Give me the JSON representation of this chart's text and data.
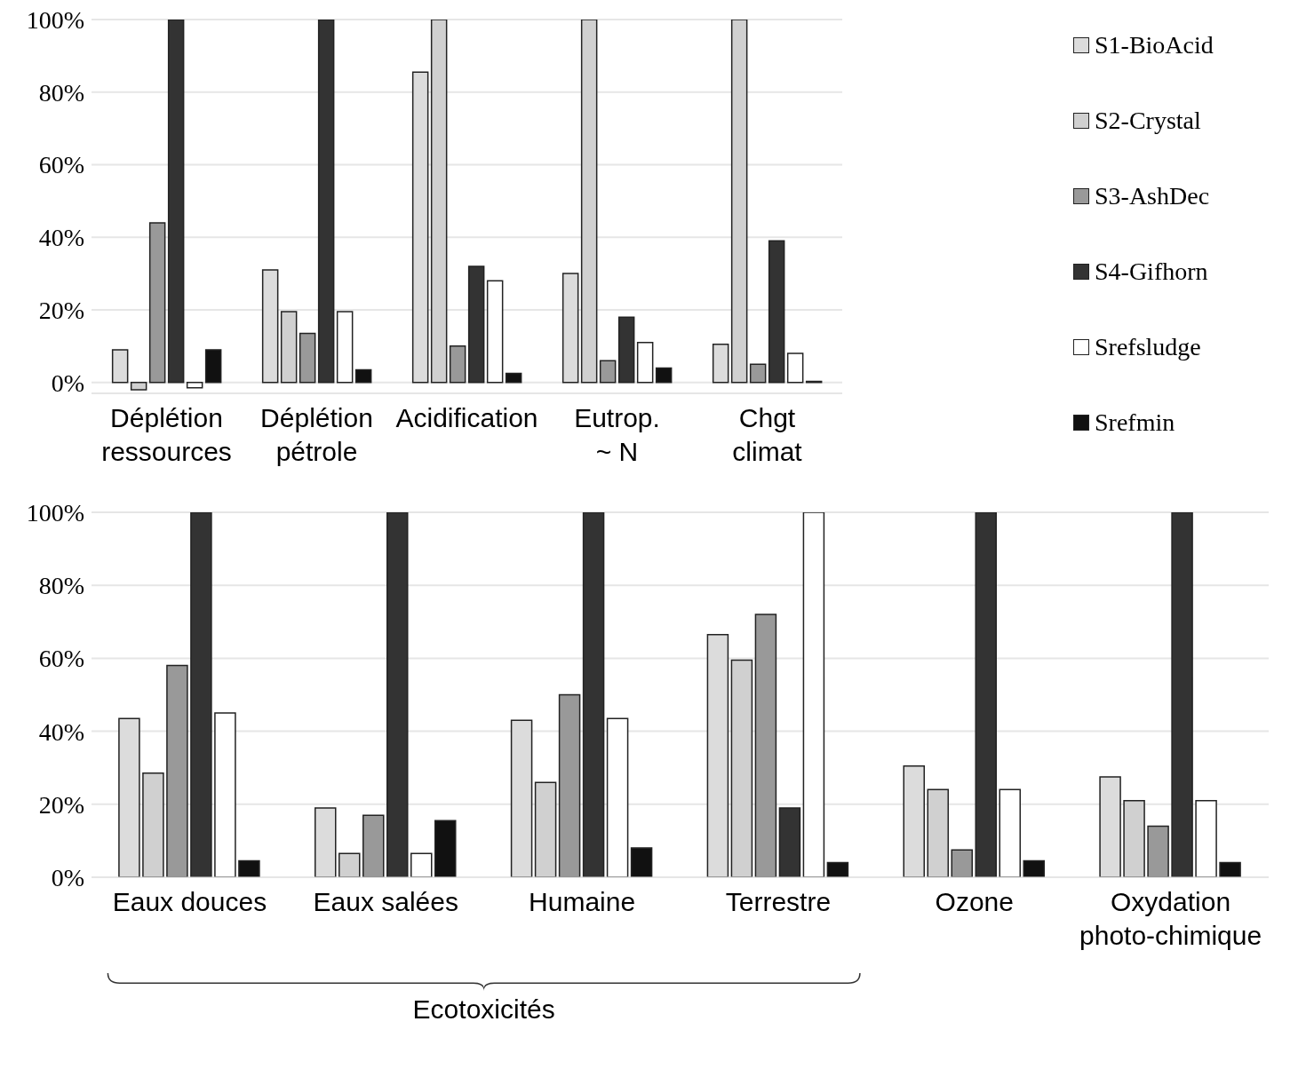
{
  "chart_data": [
    {
      "type": "bar",
      "categories": [
        "Déplétion\nressources",
        "Déplétion\npétrole",
        "Acidification",
        "Eutrop.\n~ N",
        "Chgt\nclimat"
      ],
      "series": [
        {
          "name": "S1-BioAcid",
          "color": "#dcdcdc",
          "values": [
            9,
            31,
            85.5,
            30,
            10.5
          ]
        },
        {
          "name": "S2-Crystal",
          "color": "#d0d0d0",
          "values": [
            -2,
            19.5,
            100,
            100,
            100
          ]
        },
        {
          "name": "S3-AshDec",
          "color": "#999999",
          "values": [
            44,
            13.5,
            10,
            6,
            5
          ]
        },
        {
          "name": "S4-Gifhorn",
          "color": "#333333",
          "values": [
            100,
            100,
            32,
            18,
            39
          ]
        },
        {
          "name": "Srefsludge",
          "color": "#ffffff",
          "values": [
            -1.5,
            19.5,
            28,
            11,
            8
          ]
        },
        {
          "name": "Srefmin",
          "color": "#111111",
          "values": [
            9,
            3.5,
            2.5,
            4,
            0.3
          ]
        }
      ],
      "ylim": [
        -3,
        100
      ],
      "yticks": [
        {
          "value": 0,
          "label": "0%"
        },
        {
          "value": 20,
          "label": "20%"
        },
        {
          "value": 40,
          "label": "40%"
        },
        {
          "value": 60,
          "label": "60%"
        },
        {
          "value": 80,
          "label": "80%"
        },
        {
          "value": 100,
          "label": "100%"
        }
      ],
      "grid": "y",
      "legend": "right"
    },
    {
      "type": "bar",
      "categories": [
        "Eaux douces",
        "Eaux salées",
        "Humaine",
        "Terrestre",
        "Ozone",
        "Oxydation\nphoto-chimique"
      ],
      "series": [
        {
          "color": "#dcdcdc",
          "values": [
            43.5,
            19,
            43,
            66.5,
            30.5,
            27.5
          ]
        },
        {
          "color": "#d0d0d0",
          "values": [
            28.5,
            6.5,
            26,
            59.5,
            24,
            21
          ]
        },
        {
          "color": "#999999",
          "values": [
            58,
            17,
            50,
            72,
            7.5,
            14
          ]
        },
        {
          "color": "#333333",
          "values": [
            100,
            100,
            100,
            19,
            100,
            100
          ]
        },
        {
          "color": "#ffffff",
          "values": [
            45,
            6.5,
            43.5,
            100,
            24,
            21
          ]
        },
        {
          "color": "#111111",
          "values": [
            4.5,
            15.5,
            8,
            4,
            4.5,
            4
          ]
        }
      ],
      "ylim": [
        0,
        100
      ],
      "yticks": [
        {
          "value": 0,
          "label": "0%"
        },
        {
          "value": 20,
          "label": "20%"
        },
        {
          "value": 40,
          "label": "40%"
        },
        {
          "value": 60,
          "label": "60%"
        },
        {
          "value": 80,
          "label": "80%"
        },
        {
          "value": 100,
          "label": "100%"
        }
      ],
      "grid": "y",
      "legend": false,
      "annotations": [
        "Ecotoxicités"
      ]
    }
  ]
}
